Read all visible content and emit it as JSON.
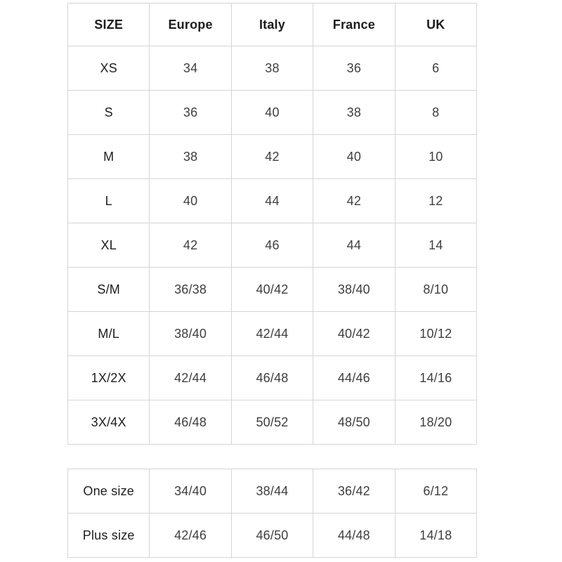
{
  "colors": {
    "background": "#ffffff",
    "border": "#d5d5d5",
    "header_text": "#1d1d1f",
    "cell_text": "#3e3e42"
  },
  "chart_data": [
    {
      "type": "table",
      "title": "",
      "columns": [
        "SIZE",
        "Europe",
        "Italy",
        "France",
        "UK"
      ],
      "rows": [
        [
          "XS",
          "34",
          "38",
          "36",
          "6"
        ],
        [
          "S",
          "36",
          "40",
          "38",
          "8"
        ],
        [
          "M",
          "38",
          "42",
          "40",
          "10"
        ],
        [
          "L",
          "40",
          "44",
          "42",
          "12"
        ],
        [
          "XL",
          "42",
          "46",
          "44",
          "14"
        ],
        [
          "S/M",
          "36/38",
          "40/42",
          "38/40",
          "8/10"
        ],
        [
          "M/L",
          "38/40",
          "42/44",
          "40/42",
          "10/12"
        ],
        [
          "1X/2X",
          "42/44",
          "46/48",
          "44/46",
          "14/16"
        ],
        [
          "3X/4X",
          "46/48",
          "50/52",
          "48/50",
          "18/20"
        ]
      ]
    },
    {
      "type": "table",
      "title": "",
      "columns": [],
      "rows": [
        [
          "One size",
          "34/40",
          "38/44",
          "36/42",
          "6/12"
        ],
        [
          "Plus size",
          "42/46",
          "46/50",
          "44/48",
          "14/18"
        ]
      ]
    }
  ]
}
